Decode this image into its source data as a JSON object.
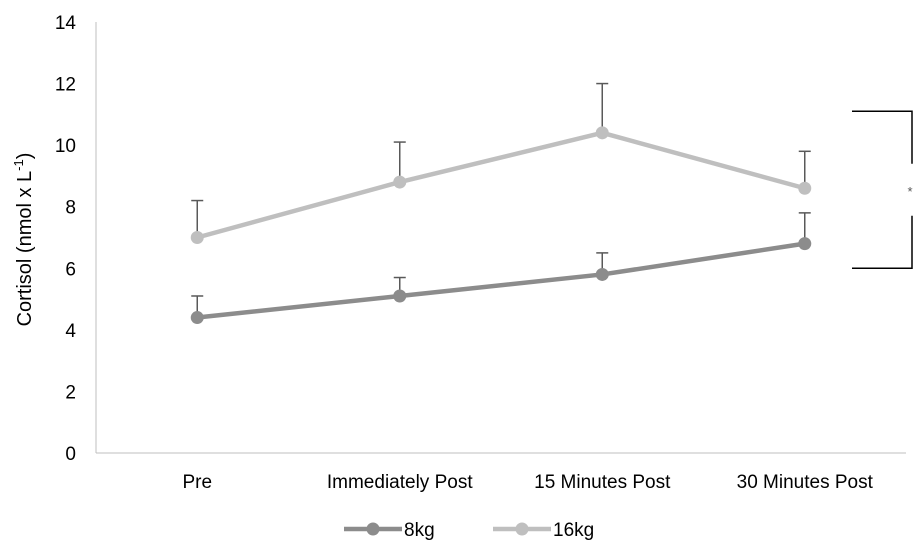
{
  "chart_data": {
    "type": "line",
    "categories": [
      "Pre",
      "Immediately Post",
      "15 Minutes Post",
      "30 Minutes Post"
    ],
    "series": [
      {
        "name": "8kg",
        "values": [
          4.4,
          5.1,
          5.8,
          6.8
        ],
        "error": [
          0.7,
          0.6,
          0.7,
          1.0
        ],
        "color": "#8c8c8c"
      },
      {
        "name": "16kg",
        "values": [
          7.0,
          8.8,
          10.4,
          8.6
        ],
        "error": [
          1.2,
          1.3,
          1.6,
          1.2
        ],
        "color": "#bfbfbf"
      }
    ],
    "ylabel": "Cortisol (nmol x L",
    "ylabel_superscript": "-1",
    "ylabel_suffix": ")",
    "ylim": [
      0,
      14
    ],
    "yticks": [
      "0",
      "2",
      "4",
      "6",
      "8",
      "10",
      "12",
      "14"
    ],
    "yticks_values": [
      0,
      2,
      4,
      6,
      8,
      10,
      12,
      14
    ],
    "grid": false,
    "legend_position": "bottom",
    "significance": {
      "label": "*",
      "range": [
        6,
        11.1
      ]
    }
  }
}
